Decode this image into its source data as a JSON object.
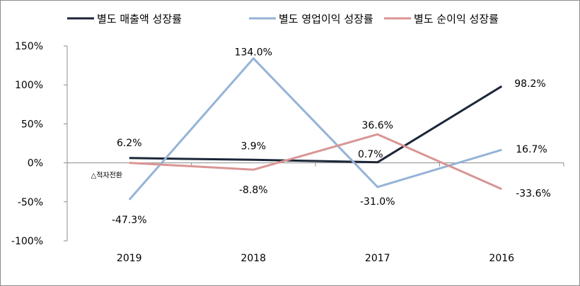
{
  "chart_data": {
    "type": "line",
    "categories": [
      "2019",
      "2018",
      "2017",
      "2016"
    ],
    "yticks": [
      "150%",
      "100%",
      "50%",
      "0%",
      "-50%",
      "-100%"
    ],
    "ylim": [
      -100,
      150
    ],
    "grid": false,
    "legend_position": "top",
    "series": [
      {
        "name": "별도 매출액 성장률",
        "color": "#1b2638",
        "values": [
          6.2,
          3.9,
          0.7,
          98.2
        ],
        "labels": [
          "6.2%",
          "3.9%",
          "0.7%",
          "98.2%"
        ]
      },
      {
        "name": "별도 영업이익 성장률",
        "color": "#95b3d7",
        "values": [
          -47.3,
          134.0,
          -31.0,
          16.7
        ],
        "labels": [
          "-47.3%",
          "134.0%",
          "-31.0%",
          "16.7%"
        ]
      },
      {
        "name": "별도 순이익 성장률",
        "color": "#d99594",
        "values": [
          0,
          -8.8,
          36.6,
          -33.6
        ],
        "labels": [
          "△적자전환",
          "-8.8%",
          "36.6%",
          "-33.6%"
        ]
      }
    ]
  }
}
